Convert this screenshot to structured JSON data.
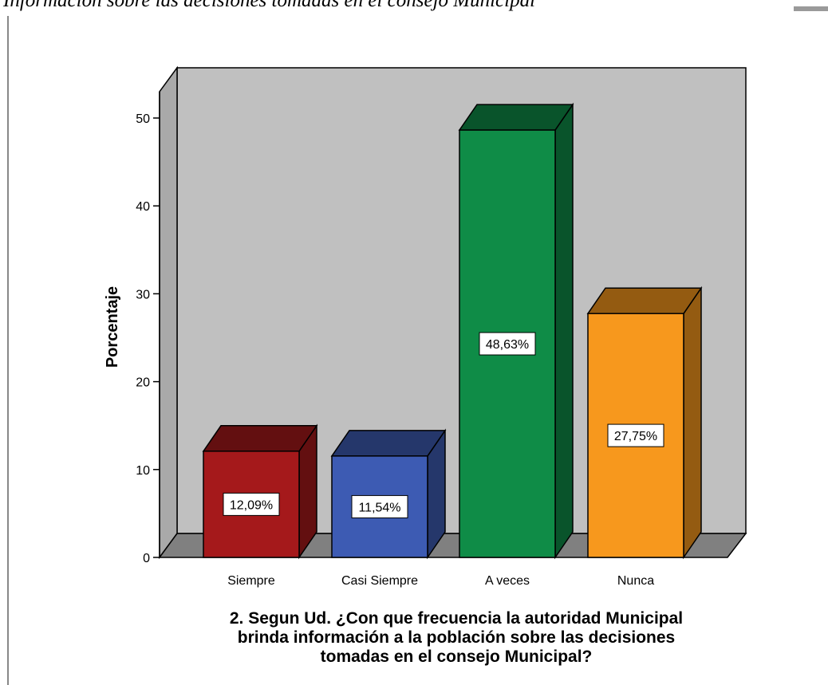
{
  "caption": "Información sobre las decisiones tomadas en el consejo Municipal",
  "chart_data": {
    "type": "bar3d",
    "y_label": "Porcentaje",
    "x_label": [
      "2. Segun Ud. ¿Con que frecuencia la autoridad Municipal",
      "brinda información a la población sobre las decisiones",
      "tomadas en el consejo Municipal?"
    ],
    "categories": [
      "Siempre",
      "Casi Siempre",
      "A veces",
      "Nunca"
    ],
    "values": [
      12.09,
      11.54,
      48.63,
      27.75
    ],
    "value_labels": [
      "12,09%",
      "11,54%",
      "48,63%",
      "27,75%"
    ],
    "colors": [
      "#a5191b",
      "#3d5bb3",
      "#0f8c47",
      "#f7981d"
    ],
    "ylim": [
      0,
      53
    ],
    "yticks": [
      0,
      10,
      20,
      30,
      40,
      50
    ]
  }
}
